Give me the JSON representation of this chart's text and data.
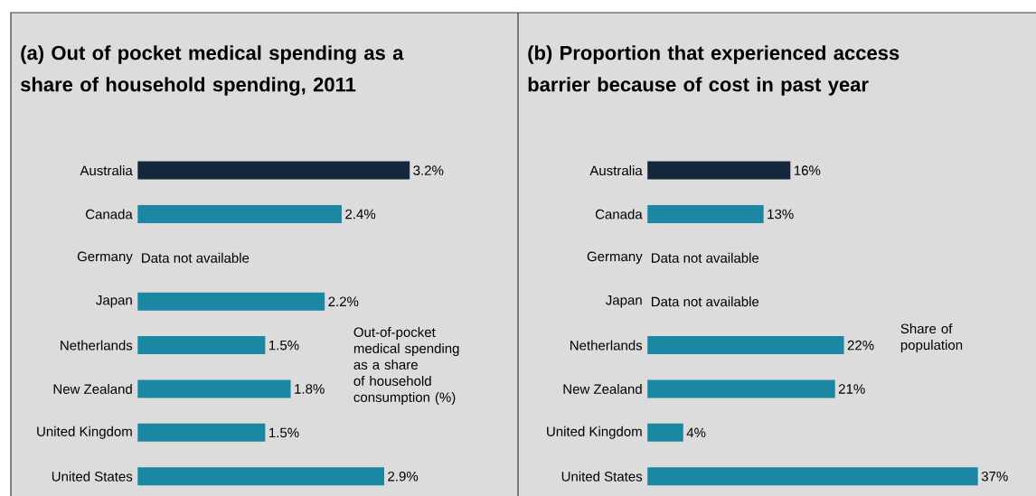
{
  "chart_data": [
    {
      "type": "bar",
      "orientation": "horizontal",
      "title": "(a) Out of pocket medical spending as a share of household spending, 2011",
      "categories": [
        "Australia",
        "Canada",
        "Germany",
        "Japan",
        "Netherlands",
        "New Zealand",
        "United Kingdom",
        "United States"
      ],
      "values": [
        3.2,
        2.4,
        null,
        2.2,
        1.5,
        1.8,
        1.5,
        2.9
      ],
      "colors": [
        "#14273d",
        "#1b87a3",
        "#1b87a3",
        "#1b87a3",
        "#1b87a3",
        "#1b87a3",
        "#1b87a3",
        "#1b87a3"
      ],
      "value_labels": [
        "3.2%",
        "2.4%",
        null,
        "2.2%",
        "1.5%",
        "1.8%",
        "1.5%",
        "2.9%"
      ],
      "tick_labels": "y",
      "xlabel": "Out-of-pocket medical spending as a share of household consumption (%)",
      "annotations": [
        "Data not available"
      ]
    },
    {
      "type": "bar",
      "orientation": "horizontal",
      "title": "(b) Proportion that experienced access barrier because of cost in past year",
      "categories": [
        "Australia",
        "Canada",
        "Germany",
        "Japan",
        "Netherlands",
        "New Zealand",
        "United Kingdom",
        "United States"
      ],
      "values": [
        16,
        13,
        null,
        null,
        22,
        21,
        4,
        37
      ],
      "colors": [
        "#14273d",
        "#1b87a3",
        "#1b87a3",
        "#1b87a3",
        "#1b87a3",
        "#1b87a3",
        "#1b87a3",
        "#1b87a3"
      ],
      "value_labels": [
        "16%",
        "13%",
        null,
        null,
        "22%",
        "21%",
        "4%",
        "37%"
      ],
      "tick_labels": "y",
      "xlabel": "Share of population",
      "annotations": [
        "Data not available",
        "Data not available"
      ]
    }
  ]
}
